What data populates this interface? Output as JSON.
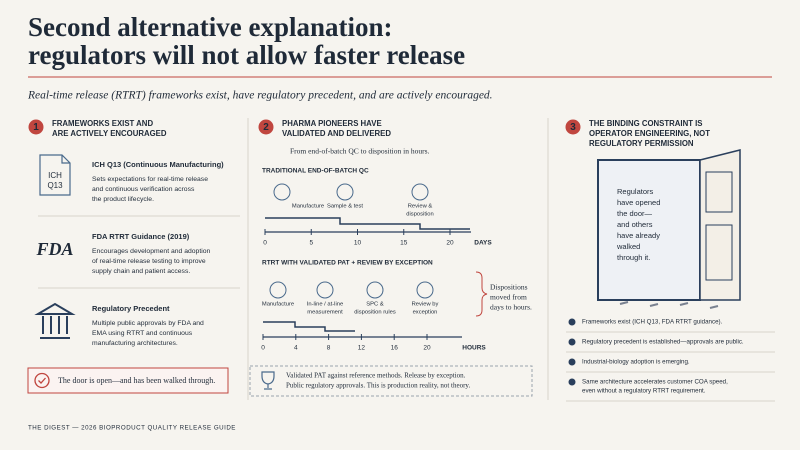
{
  "header": {
    "title": [
      "Second alternative explanation:",
      "regulators will not allow faster release"
    ],
    "subtitle": "Real-time release (RTRT) frameworks exist, have regulatory precedent, and are actively encouraged."
  },
  "columns": [
    {
      "number": "1",
      "heading": [
        "FRAMEWORKS EXIST AND",
        "ARE ACTIVELY ENCOURAGED"
      ],
      "items": [
        {
          "icon_text": [
            "ICH",
            "Q13"
          ],
          "title": "ICH Q13 (Continuous Manufacturing)",
          "text": [
            "Sets expectations for real-time release",
            "and continuous verification across",
            "the product lifecycle."
          ]
        },
        {
          "icon_text": [
            "FDA"
          ],
          "title": "FDA RTRT Guidance (2019)",
          "text": [
            "Encourages development and adoption",
            "of real-time release testing to improve",
            "supply chain and patient access."
          ]
        },
        {
          "title": "Regulatory Precedent",
          "text": [
            "Multiple public approvals by FDA and",
            "EMA using RTRT and continuous",
            "manufacturing architectures."
          ]
        }
      ],
      "callout": "The door is open—and has been walked through."
    },
    {
      "number": "2",
      "heading": [
        "PHARMA PIONEERS HAVE",
        "VALIDATED AND DELIVERED"
      ],
      "subtitle": "From end-of-batch QC to disposition in hours.",
      "timelines": [
        {
          "title": "TRADITIONAL END-OF-BATCH QC",
          "steps": [
            [
              "Manufacture"
            ],
            [
              "Sample & test"
            ],
            [
              "Review &",
              "disposition"
            ]
          ],
          "ticks": [
            0,
            5,
            10,
            15,
            20
          ],
          "unit": "DAYS"
        },
        {
          "title": "RTRT WITH VALIDATED PAT + REVIEW BY EXCEPTION",
          "steps": [
            [
              "Manufacture"
            ],
            [
              "In-line / at-line",
              "measurement"
            ],
            [
              "SPC &",
              "disposition rules"
            ],
            [
              "Review by",
              "exception"
            ]
          ],
          "ticks": [
            0,
            4,
            8,
            12,
            16,
            20
          ],
          "unit": "HOURS"
        }
      ],
      "note": [
        "Dispositions",
        "moved from",
        "days to hours."
      ],
      "callout": [
        "Validated PAT against reference methods. Release by exception.",
        "Public regulatory approvals. This is production reality, not theory."
      ]
    },
    {
      "number": "3",
      "heading": [
        "THE BINDING CONSTRAINT IS",
        "OPERATOR ENGINEERING, NOT",
        "REGULATORY PERMISSION"
      ],
      "door_text": [
        "Regulators",
        "have opened",
        "the door—",
        "and others",
        "have already",
        "walked",
        "through it."
      ],
      "checklist": [
        [
          "Frameworks exist (ICH Q13, FDA RTRT guidance)."
        ],
        [
          "Regulatory precedent is established—approvals are public."
        ],
        [
          "Industrial-biology adoption is emerging."
        ],
        [
          "Same architecture accelerates customer COA speed,",
          "even without a regulatory RTRT requirement."
        ]
      ]
    }
  ],
  "footer": "THE DIGEST — 2026 BIOPRODUCT QUALITY RELEASE GUIDE"
}
